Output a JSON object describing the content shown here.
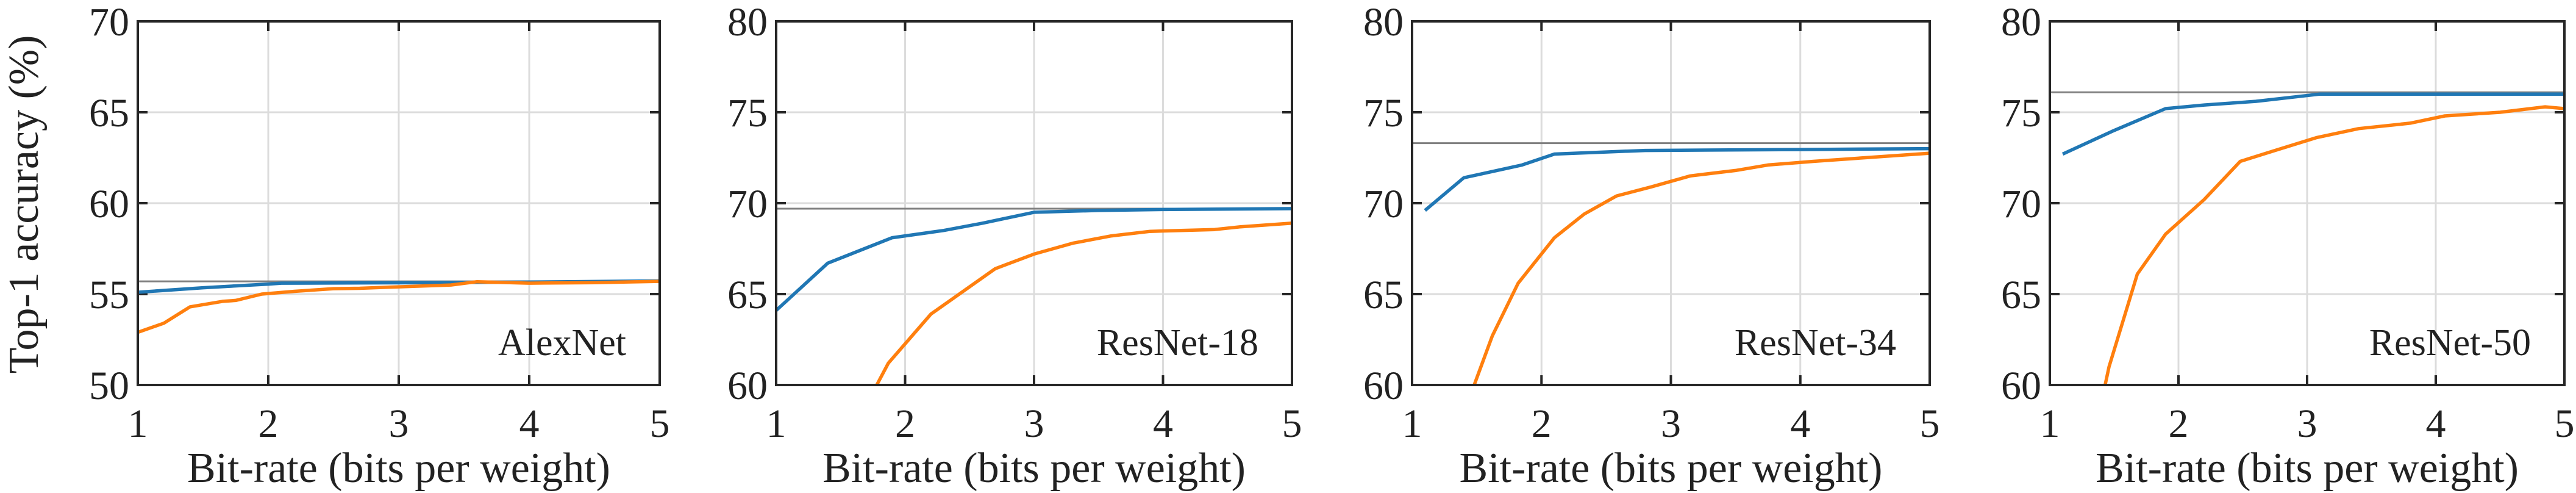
{
  "ylabel": "Top-1 accuracy (%)",
  "colors": {
    "blue": "#2077b4",
    "orange": "#ff7f0e",
    "reference": "#808080",
    "grid": "#dcdcdc",
    "axis": "#262626"
  },
  "chart_data": [
    {
      "type": "line",
      "annotation": "AlexNet",
      "xlabel": "Bit-rate (bits per weight)",
      "ylabel": "Top-1 accuracy (%)",
      "xlim": [
        1,
        5
      ],
      "ylim": [
        50,
        70
      ],
      "xticks": [
        "1",
        "2",
        "3",
        "4",
        "5"
      ],
      "yticks": [
        "50",
        "55",
        "60",
        "65",
        "70"
      ],
      "grid": true,
      "reference_line": 55.7,
      "series": [
        {
          "color": "blue",
          "x": [
            1,
            1.5,
            2,
            2.1,
            3,
            4,
            5
          ],
          "y": [
            55.1,
            55.35,
            55.55,
            55.6,
            55.62,
            55.66,
            55.72
          ]
        },
        {
          "color": "orange",
          "x": [
            1,
            1.2,
            1.4,
            1.65,
            1.75,
            1.95,
            2.2,
            2.5,
            2.7,
            3,
            3.4,
            3.6,
            4,
            4.5,
            5
          ],
          "y": [
            52.9,
            53.4,
            54.3,
            54.6,
            54.65,
            55.0,
            55.15,
            55.3,
            55.32,
            55.4,
            55.5,
            55.68,
            55.6,
            55.63,
            55.7
          ]
        }
      ]
    },
    {
      "type": "line",
      "annotation": "ResNet-18",
      "xlabel": "Bit-rate (bits per weight)",
      "xlim": [
        1,
        5
      ],
      "ylim": [
        60,
        80
      ],
      "xticks": [
        "1",
        "2",
        "3",
        "4",
        "5"
      ],
      "yticks": [
        "60",
        "65",
        "70",
        "75",
        "80"
      ],
      "grid": true,
      "reference_line": 69.7,
      "series": [
        {
          "color": "blue",
          "x": [
            1,
            1.4,
            1.9,
            2.3,
            2.6,
            3,
            3.5,
            4,
            5
          ],
          "y": [
            64.1,
            66.7,
            68.1,
            68.5,
            68.9,
            69.5,
            69.6,
            69.65,
            69.7
          ]
        },
        {
          "color": "orange",
          "x": [
            1.78,
            1.87,
            2.2,
            2.7,
            3,
            3.3,
            3.6,
            3.9,
            4.4,
            4.6,
            5
          ],
          "y": [
            60.0,
            61.2,
            63.9,
            66.4,
            67.2,
            67.8,
            68.2,
            68.45,
            68.55,
            68.7,
            68.9
          ]
        }
      ]
    },
    {
      "type": "line",
      "annotation": "ResNet-34",
      "xlabel": "Bit-rate (bits per weight)",
      "xlim": [
        1,
        5
      ],
      "ylim": [
        60,
        80
      ],
      "xticks": [
        "1",
        "2",
        "3",
        "4",
        "5"
      ],
      "yticks": [
        "60",
        "65",
        "70",
        "75",
        "80"
      ],
      "grid": true,
      "reference_line": 73.3,
      "series": [
        {
          "color": "blue",
          "x": [
            1.1,
            1.4,
            1.85,
            2.1,
            2.8,
            4,
            5
          ],
          "y": [
            69.6,
            71.4,
            72.1,
            72.7,
            72.9,
            72.95,
            73.0
          ]
        },
        {
          "color": "orange",
          "x": [
            1.48,
            1.62,
            1.82,
            2.1,
            2.33,
            2.58,
            2.85,
            3.15,
            3.5,
            3.75,
            4.1,
            4.5,
            5
          ],
          "y": [
            60.0,
            62.7,
            65.6,
            68.1,
            69.4,
            70.4,
            70.9,
            71.5,
            71.8,
            72.1,
            72.3,
            72.5,
            72.75
          ]
        }
      ]
    },
    {
      "type": "line",
      "annotation": "ResNet-50",
      "xlabel": "Bit-rate (bits per weight)",
      "xlim": [
        1,
        5
      ],
      "ylim": [
        60,
        80
      ],
      "xticks": [
        "1",
        "2",
        "3",
        "4",
        "5"
      ],
      "yticks": [
        "60",
        "65",
        "70",
        "75",
        "80"
      ],
      "grid": true,
      "reference_line": 76.1,
      "series": [
        {
          "color": "blue",
          "x": [
            1.1,
            1.5,
            1.9,
            2.2,
            2.6,
            3.1,
            4,
            5
          ],
          "y": [
            72.7,
            74.0,
            75.2,
            75.4,
            75.6,
            76.0,
            76.0,
            76.0
          ]
        },
        {
          "color": "orange",
          "x": [
            1.43,
            1.46,
            1.68,
            1.9,
            2.2,
            2.48,
            2.75,
            3.07,
            3.4,
            3.8,
            4.07,
            4.5,
            4.85,
            5
          ],
          "y": [
            60.0,
            61.0,
            66.1,
            68.3,
            70.2,
            72.3,
            72.9,
            73.6,
            74.1,
            74.4,
            74.8,
            75.0,
            75.3,
            75.2
          ]
        }
      ]
    }
  ]
}
